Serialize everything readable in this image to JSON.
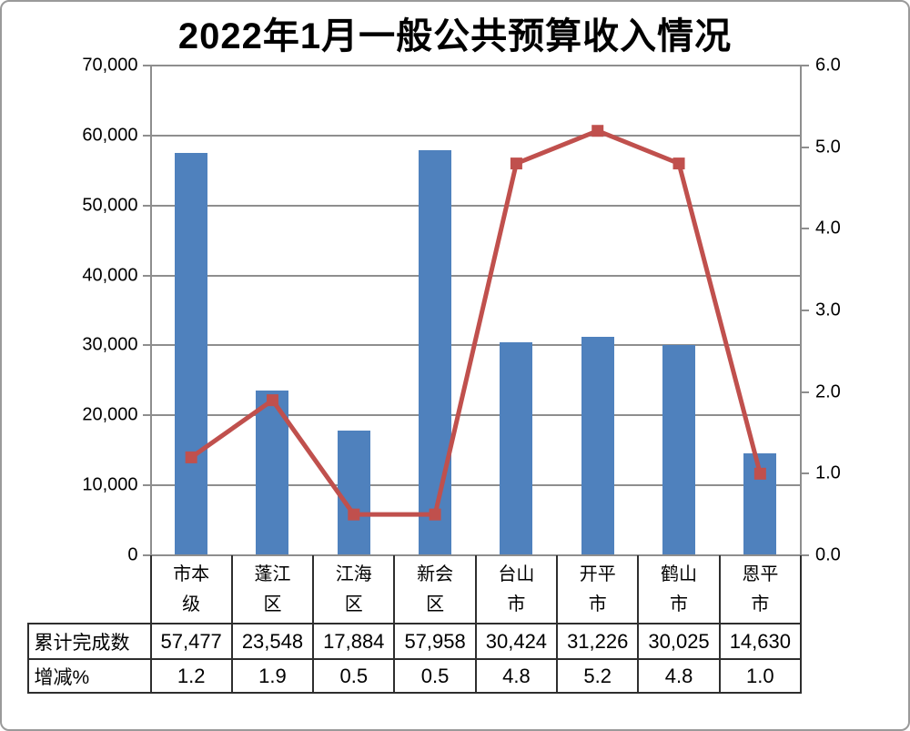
{
  "title": "2022年1月一般公共预算收入情况",
  "chart_data": {
    "type": "bar",
    "title": "2022年1月一般公共预算收入情况",
    "categories": [
      "市本级",
      "蓬江区",
      "江海区",
      "新会区",
      "台山市",
      "开平市",
      "鹤山市",
      "恩平市"
    ],
    "series": [
      {
        "name": "累计完成数",
        "type": "bar",
        "axis": "left",
        "color": "#4f81bd",
        "values": [
          57477,
          23548,
          17884,
          57958,
          30424,
          31226,
          30025,
          14630
        ]
      },
      {
        "name": "增减%",
        "type": "line",
        "axis": "right",
        "color": "#c0504d",
        "values": [
          1.2,
          1.9,
          0.5,
          0.5,
          4.8,
          5.2,
          4.8,
          1.0
        ]
      }
    ],
    "left_axis": {
      "min": 0,
      "max": 70000,
      "step": 10000,
      "tick_labels": [
        "0",
        "10,000",
        "20,000",
        "30,000",
        "40,000",
        "50,000",
        "60,000",
        "70,000"
      ]
    },
    "right_axis": {
      "min": 0.0,
      "max": 6.0,
      "step": 1.0,
      "tick_labels": [
        "0.0",
        "1.0",
        "2.0",
        "3.0",
        "4.0",
        "5.0",
        "6.0"
      ]
    },
    "grid": true,
    "legend": "none"
  },
  "data_table": {
    "rows": [
      {
        "label": "累计完成数",
        "values": [
          "57,477",
          "23,548",
          "17,884",
          "57,958",
          "30,424",
          "31,226",
          "30,025",
          "14,630"
        ]
      },
      {
        "label": "增减%",
        "values": [
          "1.2",
          "1.9",
          "0.5",
          "0.5",
          "4.8",
          "5.2",
          "4.8",
          "1.0"
        ]
      }
    ]
  },
  "colors": {
    "bar": "#4f81bd",
    "line": "#c0504d",
    "gridline": "#8e8e8e",
    "axis": "#8e8e8e",
    "table_border": "#2e2e2e",
    "background": "#ffffff",
    "text": "#000000"
  }
}
